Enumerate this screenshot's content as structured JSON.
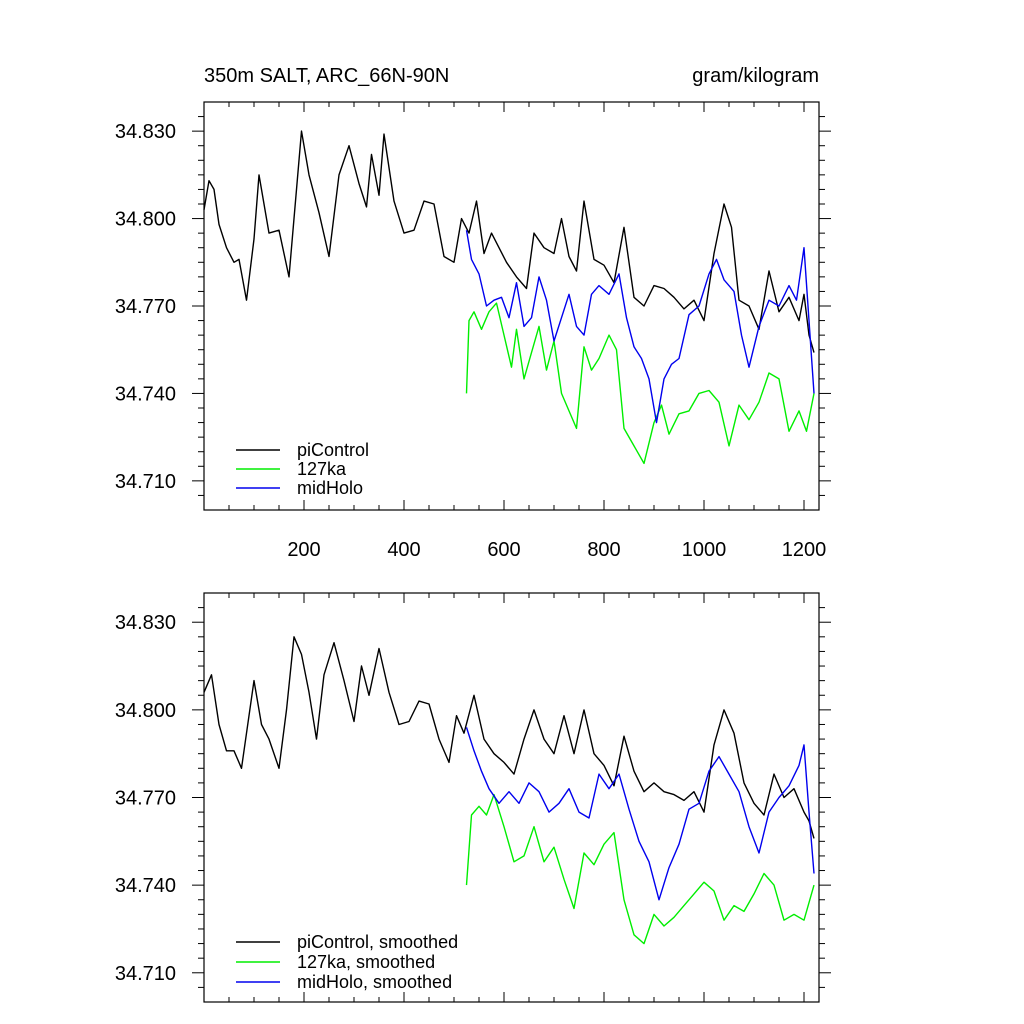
{
  "chart_data": [
    {
      "type": "line",
      "title": "350m SALT, ARC_66N-90N",
      "units": "gram/kilogram",
      "xlim": [
        0,
        1230
      ],
      "ylim": [
        34.7,
        34.84
      ],
      "x_ticks": [
        200,
        400,
        600,
        800,
        1000,
        1200
      ],
      "y_ticks": [
        "34.830",
        "34.800",
        "34.770",
        "34.740",
        "34.710"
      ],
      "y_tick_values": [
        34.83,
        34.8,
        34.77,
        34.74,
        34.71
      ],
      "legend_position": "bottom-left",
      "series": [
        {
          "name": "piControl",
          "color": "#000000",
          "x": [
            0,
            10,
            20,
            30,
            45,
            60,
            70,
            85,
            100,
            110,
            130,
            150,
            170,
            185,
            195,
            210,
            230,
            250,
            270,
            290,
            310,
            325,
            335,
            350,
            360,
            380,
            400,
            420,
            440,
            460,
            480,
            500,
            515,
            530,
            545,
            560,
            575,
            590,
            605,
            625,
            645,
            660,
            680,
            700,
            715,
            730,
            745,
            760,
            780,
            800,
            820,
            840,
            860,
            880,
            900,
            920,
            940,
            960,
            980,
            1000,
            1020,
            1040,
            1055,
            1070,
            1090,
            1110,
            1130,
            1150,
            1170,
            1190,
            1200,
            1210,
            1220
          ],
          "values": [
            34.803,
            34.813,
            34.81,
            34.798,
            34.79,
            34.785,
            34.786,
            34.772,
            34.793,
            34.815,
            34.795,
            34.796,
            34.78,
            34.81,
            34.83,
            34.815,
            34.802,
            34.787,
            34.815,
            34.825,
            34.812,
            34.804,
            34.822,
            34.808,
            34.829,
            34.806,
            34.795,
            34.796,
            34.806,
            34.805,
            34.787,
            34.785,
            34.8,
            34.795,
            34.806,
            34.788,
            34.795,
            34.79,
            34.785,
            34.78,
            34.776,
            34.795,
            34.79,
            34.788,
            34.8,
            34.787,
            34.782,
            34.806,
            34.786,
            34.784,
            34.778,
            34.797,
            34.773,
            34.77,
            34.777,
            34.776,
            34.773,
            34.769,
            34.772,
            34.765,
            34.788,
            34.805,
            34.797,
            34.772,
            34.77,
            34.762,
            34.782,
            34.768,
            34.773,
            34.765,
            34.774,
            34.76,
            34.754
          ]
        },
        {
          "name": "127ka",
          "color": "#00ee00",
          "x": [
            525,
            530,
            540,
            555,
            570,
            585,
            600,
            615,
            625,
            640,
            655,
            670,
            685,
            700,
            715,
            730,
            745,
            760,
            775,
            790,
            810,
            825,
            840,
            860,
            880,
            900,
            915,
            930,
            950,
            970,
            990,
            1010,
            1030,
            1050,
            1070,
            1090,
            1110,
            1130,
            1150,
            1170,
            1190,
            1205,
            1220
          ],
          "values": [
            34.74,
            34.765,
            34.768,
            34.762,
            34.768,
            34.771,
            34.76,
            34.749,
            34.762,
            34.745,
            34.754,
            34.763,
            34.748,
            34.758,
            34.74,
            34.734,
            34.728,
            34.756,
            34.748,
            34.752,
            34.76,
            34.755,
            34.728,
            34.722,
            34.716,
            34.73,
            34.736,
            34.726,
            34.733,
            34.734,
            34.74,
            34.741,
            34.737,
            34.722,
            34.736,
            34.731,
            34.737,
            34.747,
            34.745,
            34.727,
            34.734,
            34.727,
            34.74
          ]
        },
        {
          "name": "midHolo",
          "color": "#0000ee",
          "x": [
            525,
            535,
            550,
            565,
            580,
            595,
            610,
            625,
            640,
            655,
            670,
            685,
            700,
            715,
            730,
            745,
            760,
            775,
            790,
            810,
            830,
            845,
            860,
            875,
            890,
            905,
            920,
            935,
            950,
            970,
            990,
            1010,
            1025,
            1040,
            1060,
            1075,
            1090,
            1110,
            1130,
            1150,
            1170,
            1185,
            1200,
            1210,
            1220
          ],
          "values": [
            34.796,
            34.786,
            34.781,
            34.77,
            34.772,
            34.773,
            34.766,
            34.778,
            34.763,
            34.766,
            34.78,
            34.772,
            34.758,
            34.766,
            34.774,
            34.763,
            34.76,
            34.774,
            34.777,
            34.774,
            34.781,
            34.766,
            34.756,
            34.752,
            34.745,
            34.73,
            34.745,
            34.75,
            34.752,
            34.767,
            34.77,
            34.781,
            34.786,
            34.779,
            34.775,
            34.76,
            34.749,
            34.763,
            34.772,
            34.77,
            34.777,
            34.772,
            34.79,
            34.765,
            34.74
          ]
        }
      ]
    },
    {
      "type": "line",
      "title": "",
      "units": "",
      "xlim": [
        0,
        1230
      ],
      "ylim": [
        34.7,
        34.84
      ],
      "x_ticks": [
        200,
        400,
        600,
        800,
        1000,
        1200
      ],
      "y_ticks": [
        "34.830",
        "34.800",
        "34.770",
        "34.740",
        "34.710"
      ],
      "y_tick_values": [
        34.83,
        34.8,
        34.77,
        34.74,
        34.71
      ],
      "legend_position": "bottom-left",
      "series": [
        {
          "name": "piControl, smoothed",
          "color": "#000000",
          "x": [
            0,
            15,
            30,
            45,
            60,
            75,
            85,
            100,
            115,
            130,
            150,
            165,
            180,
            195,
            210,
            225,
            240,
            260,
            280,
            300,
            315,
            330,
            350,
            370,
            390,
            410,
            430,
            450,
            470,
            490,
            505,
            520,
            540,
            560,
            580,
            600,
            620,
            640,
            660,
            680,
            700,
            720,
            740,
            760,
            780,
            800,
            820,
            840,
            860,
            880,
            900,
            920,
            940,
            960,
            980,
            1000,
            1020,
            1040,
            1060,
            1080,
            1100,
            1120,
            1140,
            1160,
            1180,
            1200,
            1210,
            1220
          ],
          "values": [
            34.806,
            34.812,
            34.795,
            34.786,
            34.786,
            34.78,
            34.792,
            34.81,
            34.795,
            34.79,
            34.78,
            34.8,
            34.825,
            34.819,
            34.806,
            34.79,
            34.812,
            34.823,
            34.81,
            34.796,
            34.815,
            34.805,
            34.821,
            34.806,
            34.795,
            34.796,
            34.803,
            34.802,
            34.79,
            34.782,
            34.798,
            34.792,
            34.805,
            34.79,
            34.785,
            34.782,
            34.778,
            34.79,
            34.8,
            34.79,
            34.785,
            34.798,
            34.785,
            34.8,
            34.785,
            34.781,
            34.774,
            34.791,
            34.779,
            34.772,
            34.775,
            34.772,
            34.771,
            34.769,
            34.772,
            34.765,
            34.788,
            34.8,
            34.792,
            34.775,
            34.768,
            34.764,
            34.778,
            34.77,
            34.773,
            34.765,
            34.762,
            34.756
          ]
        },
        {
          "name": "127ka, smoothed",
          "color": "#00ee00",
          "x": [
            525,
            535,
            550,
            565,
            580,
            600,
            620,
            640,
            660,
            680,
            700,
            720,
            740,
            760,
            780,
            800,
            820,
            840,
            860,
            880,
            900,
            920,
            940,
            960,
            980,
            1000,
            1020,
            1040,
            1060,
            1080,
            1100,
            1120,
            1140,
            1160,
            1180,
            1200,
            1220
          ],
          "values": [
            34.74,
            34.764,
            34.767,
            34.764,
            34.771,
            34.76,
            34.748,
            34.75,
            34.76,
            34.748,
            34.753,
            34.742,
            34.732,
            34.751,
            34.747,
            34.754,
            34.758,
            34.735,
            34.723,
            34.72,
            34.73,
            34.726,
            34.729,
            34.733,
            34.737,
            34.741,
            34.738,
            34.728,
            34.733,
            34.731,
            34.737,
            34.744,
            34.74,
            34.728,
            34.73,
            34.728,
            34.74
          ]
        },
        {
          "name": "midHolo, smoothed",
          "color": "#0000ee",
          "x": [
            525,
            540,
            555,
            570,
            590,
            610,
            630,
            650,
            670,
            690,
            710,
            730,
            750,
            770,
            790,
            810,
            830,
            850,
            870,
            890,
            910,
            930,
            950,
            970,
            990,
            1010,
            1030,
            1050,
            1070,
            1090,
            1110,
            1130,
            1150,
            1170,
            1190,
            1200,
            1210,
            1220
          ],
          "values": [
            34.794,
            34.786,
            34.779,
            34.773,
            34.768,
            34.772,
            34.768,
            34.775,
            34.772,
            34.765,
            34.768,
            34.773,
            34.765,
            34.763,
            34.778,
            34.773,
            34.778,
            34.766,
            34.755,
            34.748,
            34.735,
            34.746,
            34.754,
            34.766,
            34.768,
            34.779,
            34.784,
            34.778,
            34.772,
            34.76,
            34.751,
            34.765,
            34.77,
            34.774,
            34.781,
            34.788,
            34.765,
            34.744
          ]
        }
      ]
    }
  ]
}
